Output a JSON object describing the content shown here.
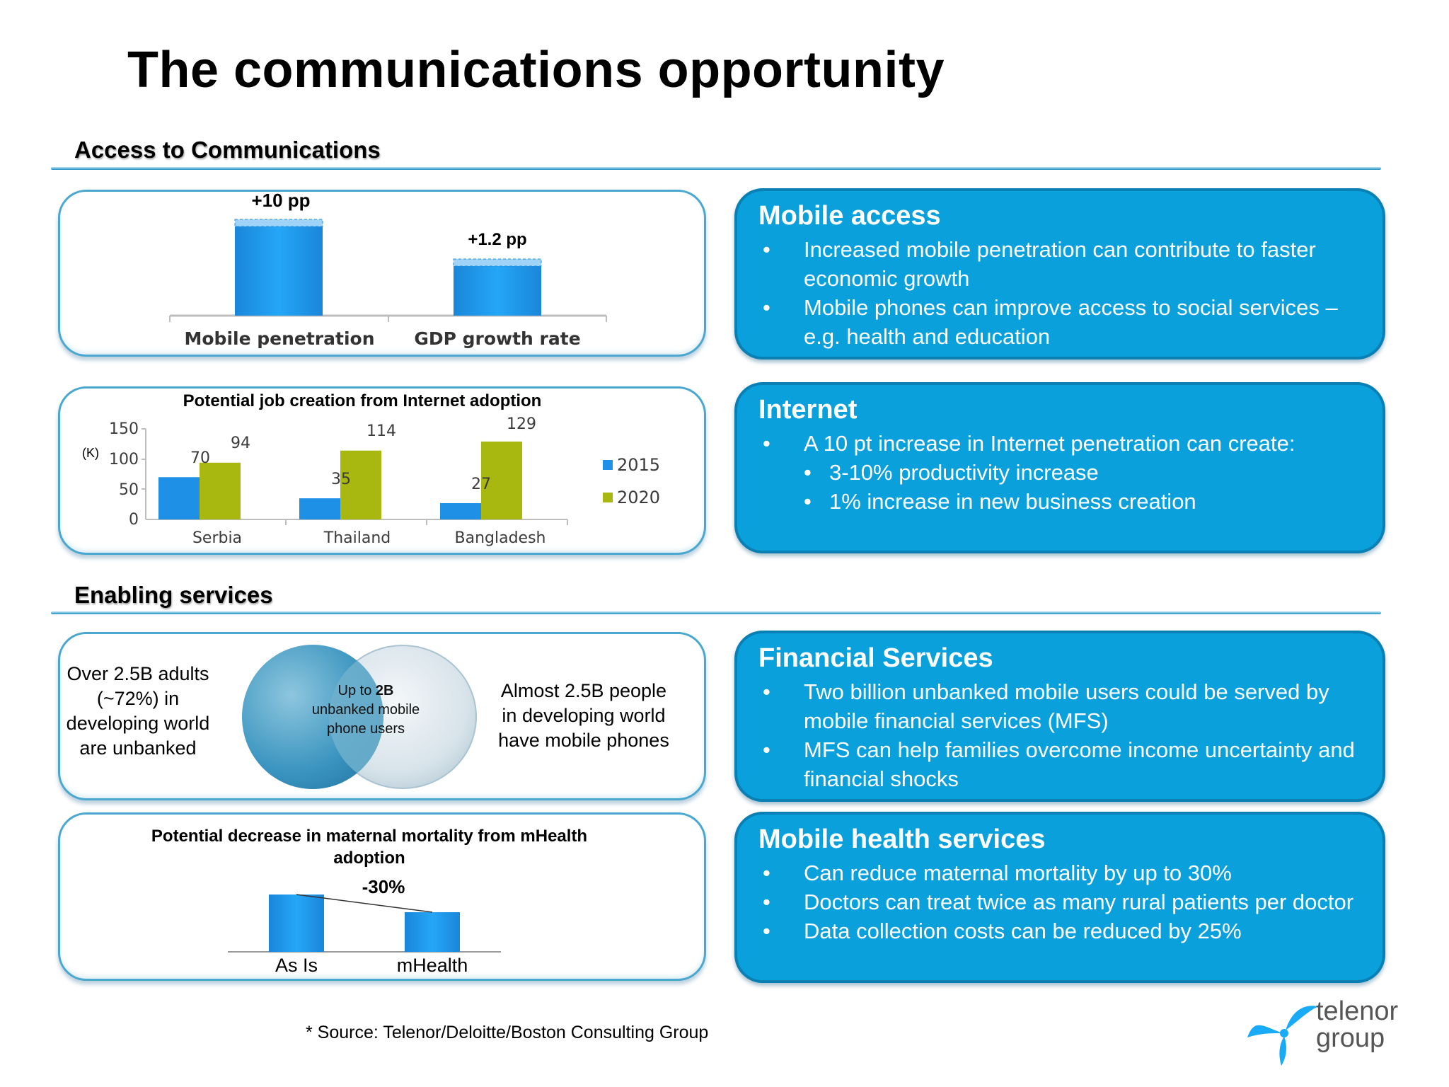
{
  "title": "The communications opportunity",
  "sections": {
    "access": "Access to Communications",
    "enabling": "Enabling services"
  },
  "impact_chart": {
    "categories": [
      "Mobile penetration",
      "GDP growth rate"
    ],
    "labels": [
      "+10 pp",
      "+1.2 pp"
    ]
  },
  "jobs_chart": {
    "title": "Potential job creation from Internet adoption",
    "unit": "(K)",
    "legend": [
      "2015",
      "2020"
    ],
    "tick_labels": [
      "150",
      "100",
      "50",
      "0"
    ],
    "categories": [
      "Serbia",
      "Thailand",
      "Bangladesh"
    ],
    "value_labels_2015": [
      "70",
      "35",
      "27"
    ],
    "value_labels_2020": [
      "94",
      "114",
      "129"
    ]
  },
  "chart_data": [
    {
      "type": "bar",
      "categories": [
        "Mobile penetration",
        "GDP growth rate"
      ],
      "values": [
        10,
        1.2
      ],
      "data_labels": [
        "+10 pp",
        "+1.2 pp"
      ]
    },
    {
      "type": "bar",
      "title": "Potential job creation from Internet adoption",
      "ylabel": "(K)",
      "categories": [
        "Serbia",
        "Thailand",
        "Bangladesh"
      ],
      "series": [
        {
          "name": "2015",
          "values": [
            70,
            35,
            27
          ],
          "color": "#1e90e6"
        },
        {
          "name": "2020",
          "values": [
            94,
            114,
            129
          ],
          "color": "#a8b811"
        }
      ],
      "ylim": [
        0,
        150
      ],
      "yticks": [
        0,
        50,
        100,
        150
      ],
      "legend": "right"
    },
    {
      "type": "bar",
      "title": "Potential decrease in maternal mortality from mHealth adoption",
      "categories": [
        "As Is",
        "mHealth"
      ],
      "values": [
        100,
        70
      ],
      "annotation": "-30%"
    }
  ],
  "venn": {
    "left_text": [
      "Over 2.5B adults",
      "(~72%) in",
      "developing world",
      "are unbanked"
    ],
    "overlap_prefix": "Up to ",
    "overlap_bold": "2B",
    "overlap_lines": [
      "unbanked mobile",
      "phone users"
    ],
    "right_text": [
      "Almost 2.5B people",
      "in developing world",
      "have mobile phones"
    ]
  },
  "mortality_chart": {
    "title_lines": [
      "Potential decrease in maternal mortality from mHealth",
      "adoption"
    ],
    "annotation": "-30%",
    "categories": [
      "As Is",
      "mHealth"
    ]
  },
  "boxes": {
    "mobile_access": {
      "title": "Mobile access",
      "items": [
        {
          "text": "Increased mobile penetration can contribute to faster economic growth"
        },
        {
          "text": "Mobile phones can improve access to social services – e.g. health and education"
        }
      ]
    },
    "internet": {
      "title": "Internet",
      "items": [
        {
          "text": "A 10 pt increase in Internet penetration can create:"
        },
        {
          "text": "3-10% productivity increase"
        },
        {
          "text": "1% increase in new business creation"
        }
      ]
    },
    "financial": {
      "title": "Financial Services",
      "items": [
        {
          "text": "Two billion unbanked mobile users could be served by mobile financial services (MFS)"
        },
        {
          "text": "MFS can help families overcome income uncertainty and financial shocks"
        }
      ]
    },
    "health": {
      "title": "Mobile health services",
      "items": [
        {
          "text": "Can reduce maternal mortality by up to 30%"
        },
        {
          "text": "Doctors can treat twice as many rural patients per doctor"
        },
        {
          "text": "Data collection costs can be reduced by 25%"
        }
      ]
    }
  },
  "source": "* Source: Telenor/Deloitte/Boston Consulting Group",
  "logo": {
    "line1": "telenor",
    "line2": "group",
    "icon": "telenor-propeller-icon",
    "color": "#19aaf8"
  }
}
